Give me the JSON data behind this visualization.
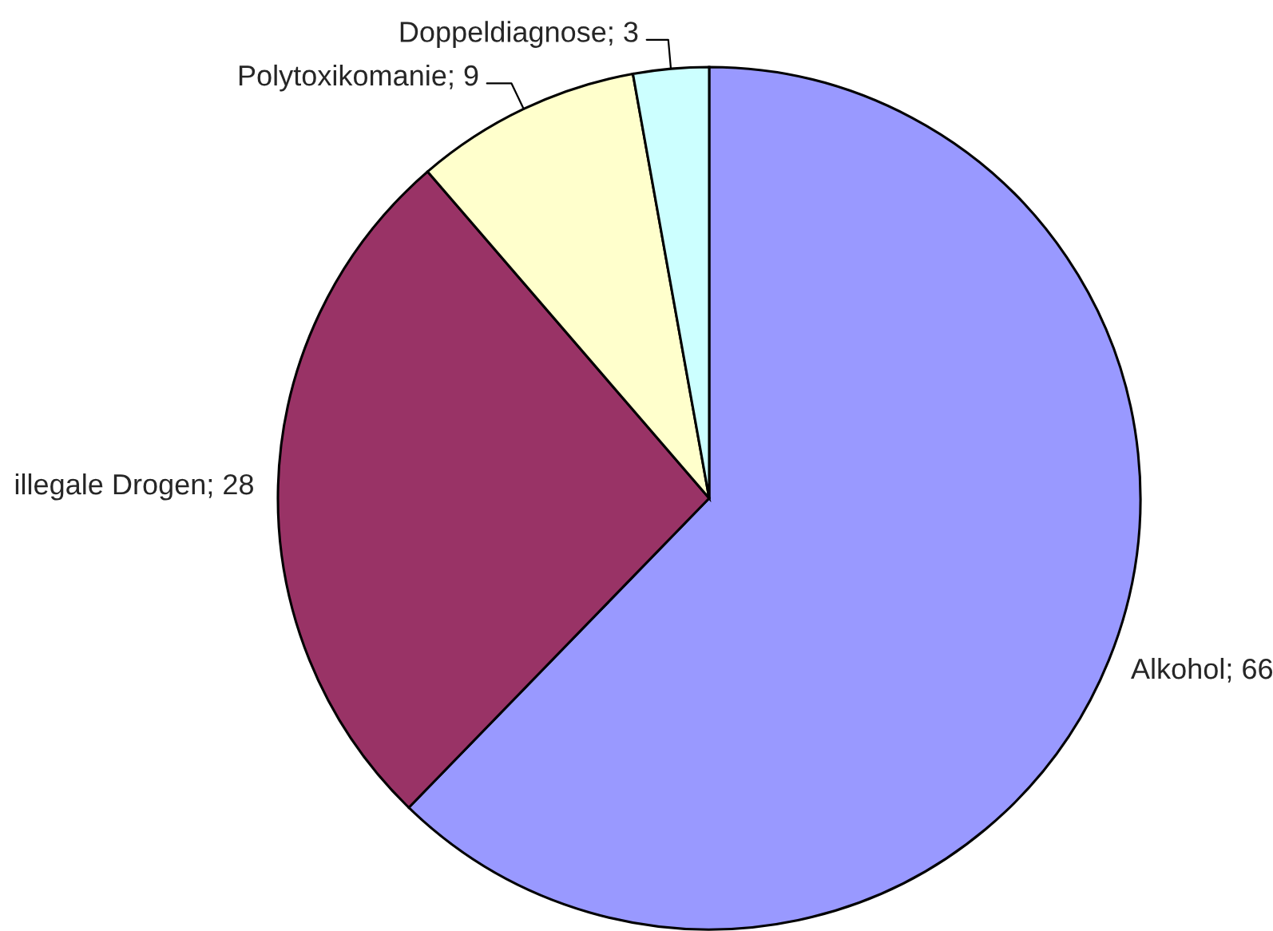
{
  "chart_data": {
    "type": "pie",
    "categories": [
      "Alkohol",
      "illegale Drogen",
      "Polytoxikomanie",
      "Doppeldiagnose"
    ],
    "values": [
      66,
      28,
      9,
      3
    ],
    "colors": [
      "#9999ff",
      "#993366",
      "#ffffcc",
      "#ccffff"
    ],
    "value_labels": [
      "; 66",
      "; 28",
      "; 9",
      "; 3"
    ]
  }
}
